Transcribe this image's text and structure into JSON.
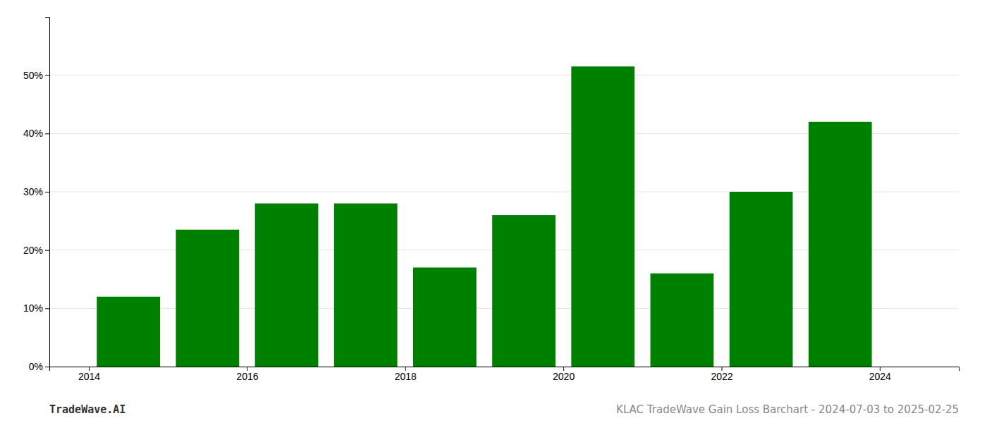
{
  "chart_data": {
    "type": "bar",
    "x": [
      2014,
      2015,
      2016,
      2017,
      2018,
      2019,
      2020,
      2021,
      2022,
      2023
    ],
    "values": [
      0.12,
      0.235,
      0.28,
      0.28,
      0.17,
      0.26,
      0.515,
      0.16,
      0.3,
      0.42
    ],
    "color": "#008000",
    "xlim": [
      2013.0,
      2024.5
    ],
    "xticks": [
      {
        "value": 2013.5,
        "label": "2014"
      },
      {
        "value": 2015.5,
        "label": "2016"
      },
      {
        "value": 2017.5,
        "label": "2018"
      },
      {
        "value": 2019.5,
        "label": "2020"
      },
      {
        "value": 2021.5,
        "label": "2022"
      },
      {
        "value": 2023.5,
        "label": "2024"
      }
    ],
    "ylim": [
      0,
      0.6
    ],
    "yticks": [
      {
        "value": 0.0,
        "label": "0%"
      },
      {
        "value": 0.1,
        "label": "10%"
      },
      {
        "value": 0.2,
        "label": "20%"
      },
      {
        "value": 0.3,
        "label": "30%"
      },
      {
        "value": 0.4,
        "label": "40%"
      },
      {
        "value": 0.5,
        "label": "50%"
      }
    ],
    "grid": true,
    "annotations": [
      "TradeWave.AI",
      "KLAC TradeWave Gain Loss Barchart - 2024-07-03 to 2025-02-25"
    ]
  }
}
